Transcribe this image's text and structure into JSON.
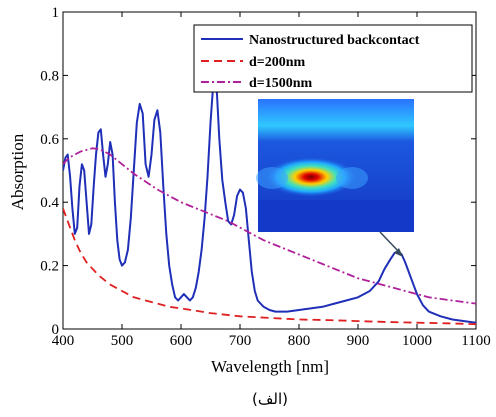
{
  "chart_data": {
    "type": "line",
    "xlabel": "Wavelength [nm]",
    "ylabel": "Absorption",
    "xlim": [
      400,
      1100
    ],
    "ylim": [
      0,
      1
    ],
    "xticks": [
      "400",
      "500",
      "600",
      "700",
      "800",
      "900",
      "1000",
      "1100"
    ],
    "yticks": [
      "0",
      "0.2",
      "0.4",
      "0.6",
      "0.8",
      "1"
    ],
    "xtick_values": [
      400,
      500,
      600,
      700,
      800,
      900,
      1000,
      1100
    ],
    "ytick_values": [
      0,
      0.2,
      0.4,
      0.6,
      0.8,
      1
    ],
    "legend_position": "top-right",
    "caption": "(الف)",
    "inset": {
      "type": "heatmap",
      "description_visible": false
    },
    "series": [
      {
        "name": "Nanostructured backcontact",
        "color": "#1f2fb8",
        "style": "solid",
        "points": [
          [
            400,
            0.5
          ],
          [
            404,
            0.54
          ],
          [
            408,
            0.55
          ],
          [
            412,
            0.48
          ],
          [
            416,
            0.38
          ],
          [
            420,
            0.3
          ],
          [
            424,
            0.32
          ],
          [
            428,
            0.45
          ],
          [
            432,
            0.52
          ],
          [
            436,
            0.5
          ],
          [
            440,
            0.4
          ],
          [
            444,
            0.3
          ],
          [
            448,
            0.33
          ],
          [
            452,
            0.45
          ],
          [
            456,
            0.55
          ],
          [
            460,
            0.62
          ],
          [
            464,
            0.63
          ],
          [
            468,
            0.55
          ],
          [
            472,
            0.48
          ],
          [
            476,
            0.52
          ],
          [
            480,
            0.59
          ],
          [
            484,
            0.55
          ],
          [
            488,
            0.4
          ],
          [
            492,
            0.28
          ],
          [
            496,
            0.22
          ],
          [
            500,
            0.2
          ],
          [
            505,
            0.21
          ],
          [
            510,
            0.25
          ],
          [
            515,
            0.35
          ],
          [
            520,
            0.5
          ],
          [
            525,
            0.65
          ],
          [
            530,
            0.71
          ],
          [
            535,
            0.68
          ],
          [
            540,
            0.52
          ],
          [
            545,
            0.48
          ],
          [
            550,
            0.55
          ],
          [
            555,
            0.66
          ],
          [
            560,
            0.69
          ],
          [
            565,
            0.62
          ],
          [
            570,
            0.45
          ],
          [
            575,
            0.3
          ],
          [
            580,
            0.2
          ],
          [
            585,
            0.14
          ],
          [
            590,
            0.1
          ],
          [
            595,
            0.09
          ],
          [
            600,
            0.1
          ],
          [
            605,
            0.11
          ],
          [
            610,
            0.1
          ],
          [
            615,
            0.09
          ],
          [
            620,
            0.1
          ],
          [
            625,
            0.13
          ],
          [
            630,
            0.18
          ],
          [
            635,
            0.25
          ],
          [
            640,
            0.35
          ],
          [
            645,
            0.48
          ],
          [
            650,
            0.65
          ],
          [
            655,
            0.78
          ],
          [
            658,
            0.8
          ],
          [
            661,
            0.74
          ],
          [
            665,
            0.6
          ],
          [
            670,
            0.47
          ],
          [
            675,
            0.4
          ],
          [
            680,
            0.34
          ],
          [
            685,
            0.33
          ],
          [
            690,
            0.36
          ],
          [
            695,
            0.42
          ],
          [
            700,
            0.44
          ],
          [
            705,
            0.43
          ],
          [
            710,
            0.38
          ],
          [
            715,
            0.28
          ],
          [
            720,
            0.18
          ],
          [
            725,
            0.12
          ],
          [
            730,
            0.09
          ],
          [
            740,
            0.07
          ],
          [
            750,
            0.06
          ],
          [
            760,
            0.055
          ],
          [
            780,
            0.055
          ],
          [
            800,
            0.06
          ],
          [
            820,
            0.065
          ],
          [
            840,
            0.07
          ],
          [
            860,
            0.08
          ],
          [
            880,
            0.09
          ],
          [
            900,
            0.1
          ],
          [
            920,
            0.12
          ],
          [
            935,
            0.15
          ],
          [
            945,
            0.19
          ],
          [
            955,
            0.22
          ],
          [
            962,
            0.24
          ],
          [
            968,
            0.245
          ],
          [
            974,
            0.235
          ],
          [
            980,
            0.21
          ],
          [
            990,
            0.16
          ],
          [
            1000,
            0.11
          ],
          [
            1010,
            0.075
          ],
          [
            1020,
            0.055
          ],
          [
            1040,
            0.04
          ],
          [
            1060,
            0.03
          ],
          [
            1080,
            0.025
          ],
          [
            1100,
            0.02
          ]
        ]
      },
      {
        "name": "d=200nm",
        "color": "#e02020",
        "style": "dashed",
        "points": [
          [
            400,
            0.38
          ],
          [
            410,
            0.33
          ],
          [
            420,
            0.28
          ],
          [
            430,
            0.24
          ],
          [
            440,
            0.21
          ],
          [
            450,
            0.19
          ],
          [
            460,
            0.17
          ],
          [
            470,
            0.155
          ],
          [
            480,
            0.14
          ],
          [
            500,
            0.12
          ],
          [
            520,
            0.1
          ],
          [
            540,
            0.09
          ],
          [
            560,
            0.08
          ],
          [
            580,
            0.07
          ],
          [
            600,
            0.065
          ],
          [
            650,
            0.05
          ],
          [
            700,
            0.04
          ],
          [
            750,
            0.035
          ],
          [
            800,
            0.03
          ],
          [
            850,
            0.028
          ],
          [
            900,
            0.025
          ],
          [
            950,
            0.022
          ],
          [
            1000,
            0.02
          ],
          [
            1050,
            0.018
          ],
          [
            1100,
            0.015
          ]
        ]
      },
      {
        "name": "d=1500nm",
        "color": "#b0209a",
        "style": "dashdot",
        "points": [
          [
            400,
            0.52
          ],
          [
            410,
            0.54
          ],
          [
            420,
            0.55
          ],
          [
            430,
            0.56
          ],
          [
            440,
            0.565
          ],
          [
            450,
            0.57
          ],
          [
            460,
            0.568
          ],
          [
            470,
            0.56
          ],
          [
            480,
            0.55
          ],
          [
            500,
            0.52
          ],
          [
            520,
            0.49
          ],
          [
            540,
            0.465
          ],
          [
            560,
            0.44
          ],
          [
            580,
            0.42
          ],
          [
            600,
            0.4
          ],
          [
            620,
            0.385
          ],
          [
            640,
            0.37
          ],
          [
            660,
            0.355
          ],
          [
            680,
            0.34
          ],
          [
            700,
            0.32
          ],
          [
            720,
            0.3
          ],
          [
            740,
            0.28
          ],
          [
            760,
            0.265
          ],
          [
            780,
            0.25
          ],
          [
            800,
            0.235
          ],
          [
            820,
            0.22
          ],
          [
            840,
            0.205
          ],
          [
            860,
            0.19
          ],
          [
            880,
            0.175
          ],
          [
            900,
            0.16
          ],
          [
            920,
            0.15
          ],
          [
            940,
            0.14
          ],
          [
            960,
            0.13
          ],
          [
            980,
            0.12
          ],
          [
            1000,
            0.11
          ],
          [
            1020,
            0.1
          ],
          [
            1040,
            0.095
          ],
          [
            1060,
            0.09
          ],
          [
            1080,
            0.085
          ],
          [
            1100,
            0.08
          ]
        ]
      }
    ]
  }
}
